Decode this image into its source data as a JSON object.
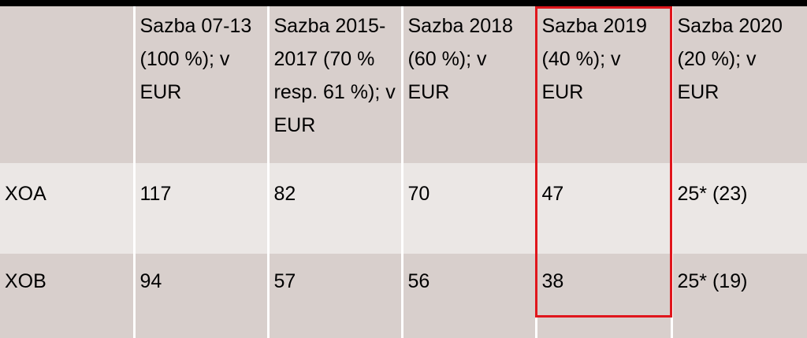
{
  "table": {
    "header": [
      "",
      "Sazba 07-13 (100 %); v EUR",
      "Sazba 2015-2017 (70 % resp. 61 %); v EUR",
      "Sazba 2018 (60 %); v EUR",
      "Sazba 2019 (40 %); v EUR",
      "Sazba 2020 (20 %); v EUR"
    ],
    "rows": [
      [
        "XOA",
        "117",
        "82",
        "70",
        "47",
        "25* (23)"
      ],
      [
        "XOB",
        "94",
        "57",
        "56",
        "38",
        "25* (19)"
      ]
    ],
    "highlighted_column": 4
  }
}
